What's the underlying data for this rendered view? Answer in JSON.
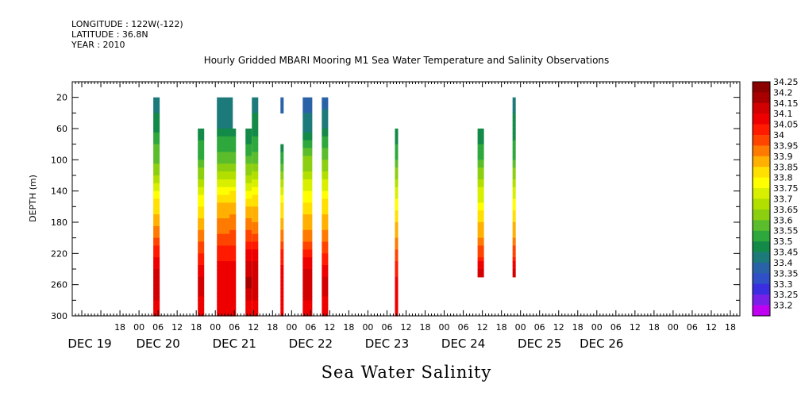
{
  "meta": {
    "longitude": "LONGITUDE : 122W(-122)",
    "latitude": "LATITUDE : 36.8N",
    "year": "YEAR : 2010"
  },
  "chart_data": {
    "type": "heatmap",
    "title": "Hourly Gridded MBARI Mooring M1 Sea Water Temperature and Salinity Observations",
    "xlabel": "Sea Water Salinity",
    "ylabel": "DEPTH (m)",
    "x_axis": {
      "unit": "hours since DEC 19 00:00",
      "range": [
        -21,
        189
      ],
      "hour_ticks": [
        {
          "x": -6,
          "label": "18"
        },
        {
          "x": 0,
          "label": "00"
        },
        {
          "x": 6,
          "label": "06"
        },
        {
          "x": 12,
          "label": "12"
        },
        {
          "x": 18,
          "label": "18"
        },
        {
          "x": 24,
          "label": "00"
        },
        {
          "x": 30,
          "label": "06"
        },
        {
          "x": 36,
          "label": "12"
        },
        {
          "x": 42,
          "label": "18"
        },
        {
          "x": 48,
          "label": "00"
        },
        {
          "x": 54,
          "label": "06"
        },
        {
          "x": 60,
          "label": "12"
        },
        {
          "x": 66,
          "label": "18"
        },
        {
          "x": 72,
          "label": "00"
        },
        {
          "x": 78,
          "label": "06"
        },
        {
          "x": 84,
          "label": "12"
        },
        {
          "x": 90,
          "label": "18"
        },
        {
          "x": 96,
          "label": "00"
        },
        {
          "x": 102,
          "label": "06"
        },
        {
          "x": 108,
          "label": "12"
        },
        {
          "x": 114,
          "label": "18"
        },
        {
          "x": 120,
          "label": "00"
        },
        {
          "x": 126,
          "label": "06"
        },
        {
          "x": 132,
          "label": "12"
        },
        {
          "x": 138,
          "label": "18"
        },
        {
          "x": 144,
          "label": "00"
        },
        {
          "x": 150,
          "label": "06"
        },
        {
          "x": 156,
          "label": "12"
        },
        {
          "x": 162,
          "label": "18"
        },
        {
          "x": 168,
          "label": "00"
        },
        {
          "x": 174,
          "label": "06"
        },
        {
          "x": 180,
          "label": "12"
        },
        {
          "x": 186,
          "label": "18"
        }
      ],
      "day_labels": [
        {
          "x": -15.5,
          "label": "DEC 19"
        },
        {
          "x": 6,
          "label": "DEC 20"
        },
        {
          "x": 30,
          "label": "DEC 21"
        },
        {
          "x": 54,
          "label": "DEC 22"
        },
        {
          "x": 78,
          "label": "DEC 23"
        },
        {
          "x": 102,
          "label": "DEC 24"
        },
        {
          "x": 126,
          "label": "DEC 25"
        },
        {
          "x": 145.5,
          "label": "DEC 26"
        }
      ]
    },
    "y_axis": {
      "range": [
        300,
        0
      ],
      "reversed": true,
      "ticks": [
        20,
        60,
        100,
        140,
        180,
        220,
        260,
        300
      ]
    },
    "colorbar": {
      "levels": [
        "34.25",
        "34.2",
        "34.15",
        "34.1",
        "34.05",
        "34",
        "33.95",
        "33.9",
        "33.85",
        "33.8",
        "33.75",
        "33.7",
        "33.65",
        "33.6",
        "33.55",
        "33.5",
        "33.45",
        "33.4",
        "33.35",
        "33.3",
        "33.25",
        "33.2"
      ],
      "colors": [
        "#8b0000",
        "#a80000",
        "#d20000",
        "#ee0000",
        "#ff1a00",
        "#ff4400",
        "#ff7a00",
        "#ffb000",
        "#ffe000",
        "#ffff00",
        "#d8ef00",
        "#b2df00",
        "#8ccf10",
        "#5cbd2c",
        "#2ea83c",
        "#138a48",
        "#1c7a7a",
        "#2a62a8",
        "#3050c8",
        "#3a2ee0",
        "#7820e8",
        "#c000f0"
      ]
    },
    "columns": [
      {
        "x0": 4.5,
        "x1": 6.5,
        "top": 20,
        "bottom": 300,
        "profile": [
          [
            20,
            33.45
          ],
          [
            40,
            33.5
          ],
          [
            60,
            33.52
          ],
          [
            80,
            33.6
          ],
          [
            100,
            33.62
          ],
          [
            120,
            33.7
          ],
          [
            140,
            33.8
          ],
          [
            160,
            33.88
          ],
          [
            180,
            33.93
          ],
          [
            200,
            34.0
          ],
          [
            220,
            34.08
          ],
          [
            240,
            34.15
          ],
          [
            260,
            34.2
          ],
          [
            280,
            34.15
          ],
          [
            300,
            34.12
          ]
        ]
      },
      {
        "x0": 18.5,
        "x1": 20.5,
        "top": 60,
        "bottom": 300,
        "profile": [
          [
            60,
            33.5
          ],
          [
            80,
            33.56
          ],
          [
            100,
            33.6
          ],
          [
            120,
            33.68
          ],
          [
            140,
            33.78
          ],
          [
            160,
            33.85
          ],
          [
            180,
            33.92
          ],
          [
            200,
            33.98
          ],
          [
            220,
            34.05
          ],
          [
            240,
            34.12
          ],
          [
            260,
            34.18
          ],
          [
            280,
            34.14
          ],
          [
            300,
            34.12
          ]
        ]
      },
      {
        "x0": 24.5,
        "x1": 29.5,
        "top": 20,
        "bottom": 300,
        "profile": [
          [
            20,
            33.48
          ],
          [
            40,
            33.48
          ],
          [
            60,
            33.5
          ],
          [
            80,
            33.58
          ],
          [
            100,
            33.63
          ],
          [
            120,
            33.72
          ],
          [
            140,
            33.82
          ],
          [
            160,
            33.92
          ],
          [
            180,
            33.96
          ],
          [
            200,
            34.02
          ],
          [
            220,
            34.08
          ],
          [
            240,
            34.12
          ],
          [
            260,
            34.15
          ],
          [
            280,
            34.12
          ],
          [
            300,
            34.1
          ]
        ]
      },
      {
        "x0": 28.5,
        "x1": 30.5,
        "top": 60,
        "bottom": 300,
        "profile": [
          [
            60,
            33.5
          ],
          [
            80,
            33.58
          ],
          [
            100,
            33.62
          ],
          [
            120,
            33.72
          ],
          [
            140,
            33.84
          ],
          [
            160,
            33.93
          ],
          [
            180,
            33.97
          ],
          [
            200,
            34.03
          ],
          [
            220,
            34.08
          ],
          [
            240,
            34.12
          ],
          [
            260,
            34.14
          ],
          [
            280,
            34.12
          ],
          [
            300,
            34.1
          ]
        ]
      },
      {
        "x0": 33.5,
        "x1": 35.5,
        "top": 60,
        "bottom": 300,
        "profile": [
          [
            60,
            33.5
          ],
          [
            80,
            33.55
          ],
          [
            100,
            33.62
          ],
          [
            120,
            33.7
          ],
          [
            140,
            33.8
          ],
          [
            160,
            33.9
          ],
          [
            180,
            33.96
          ],
          [
            200,
            34.03
          ],
          [
            220,
            34.12
          ],
          [
            240,
            34.18
          ],
          [
            260,
            34.22
          ],
          [
            280,
            34.15
          ],
          [
            300,
            34.12
          ]
        ]
      },
      {
        "x0": 35.5,
        "x1": 37.5,
        "top": 20,
        "bottom": 300,
        "profile": [
          [
            20,
            33.48
          ],
          [
            40,
            33.5
          ],
          [
            60,
            33.52
          ],
          [
            80,
            33.58
          ],
          [
            100,
            33.63
          ],
          [
            120,
            33.72
          ],
          [
            140,
            33.82
          ],
          [
            160,
            33.9
          ],
          [
            180,
            33.95
          ],
          [
            200,
            34.02
          ],
          [
            220,
            34.12
          ],
          [
            240,
            34.18
          ],
          [
            260,
            34.2
          ],
          [
            280,
            34.15
          ],
          [
            300,
            34.12
          ]
        ]
      },
      {
        "x0": 44.5,
        "x1": 45.5,
        "top": 20,
        "bottom": 40,
        "profile": [
          [
            20,
            33.42
          ],
          [
            40,
            33.42
          ]
        ]
      },
      {
        "x0": 44.5,
        "x1": 45.5,
        "top": 80,
        "bottom": 300,
        "profile": [
          [
            80,
            33.52
          ],
          [
            100,
            33.58
          ],
          [
            120,
            33.68
          ],
          [
            140,
            33.78
          ],
          [
            160,
            33.86
          ],
          [
            180,
            33.92
          ],
          [
            200,
            33.98
          ],
          [
            220,
            34.06
          ],
          [
            240,
            34.12
          ],
          [
            260,
            34.14
          ],
          [
            280,
            34.12
          ],
          [
            300,
            34.1
          ]
        ]
      },
      {
        "x0": 51.5,
        "x1": 54.5,
        "top": 20,
        "bottom": 300,
        "profile": [
          [
            20,
            33.43
          ],
          [
            40,
            33.45
          ],
          [
            60,
            33.48
          ],
          [
            80,
            33.58
          ],
          [
            100,
            33.66
          ],
          [
            120,
            33.72
          ],
          [
            140,
            33.8
          ],
          [
            160,
            33.87
          ],
          [
            180,
            33.92
          ],
          [
            200,
            33.98
          ],
          [
            220,
            34.08
          ],
          [
            240,
            34.15
          ],
          [
            260,
            34.2
          ],
          [
            280,
            34.15
          ],
          [
            300,
            34.12
          ]
        ]
      },
      {
        "x0": 57.5,
        "x1": 59.5,
        "top": 20,
        "bottom": 300,
        "profile": [
          [
            20,
            33.43
          ],
          [
            40,
            33.46
          ],
          [
            60,
            33.5
          ],
          [
            80,
            33.58
          ],
          [
            100,
            33.64
          ],
          [
            120,
            33.72
          ],
          [
            140,
            33.8
          ],
          [
            160,
            33.88
          ],
          [
            180,
            33.93
          ],
          [
            200,
            33.98
          ],
          [
            220,
            34.05
          ],
          [
            240,
            34.12
          ],
          [
            260,
            34.18
          ],
          [
            280,
            34.14
          ],
          [
            300,
            34.12
          ]
        ]
      },
      {
        "x0": 80.5,
        "x1": 81.5,
        "top": 60,
        "bottom": 300,
        "profile": [
          [
            60,
            33.5
          ],
          [
            80,
            33.55
          ],
          [
            100,
            33.6
          ],
          [
            120,
            33.68
          ],
          [
            140,
            33.76
          ],
          [
            160,
            33.84
          ],
          [
            180,
            33.9
          ],
          [
            200,
            33.95
          ],
          [
            220,
            34.02
          ],
          [
            240,
            34.08
          ],
          [
            260,
            34.12
          ],
          [
            280,
            34.12
          ],
          [
            300,
            34.12
          ]
        ]
      },
      {
        "x0": 106.5,
        "x1": 108.5,
        "top": 60,
        "bottom": 250,
        "profile": [
          [
            60,
            33.5
          ],
          [
            80,
            33.55
          ],
          [
            100,
            33.6
          ],
          [
            120,
            33.68
          ],
          [
            140,
            33.76
          ],
          [
            160,
            33.82
          ],
          [
            180,
            33.9
          ],
          [
            200,
            33.95
          ],
          [
            220,
            34.03
          ],
          [
            240,
            34.15
          ],
          [
            250,
            34.2
          ]
        ]
      },
      {
        "x0": 117.5,
        "x1": 118.5,
        "top": 20,
        "bottom": 250,
        "profile": [
          [
            20,
            33.47
          ],
          [
            40,
            33.5
          ],
          [
            60,
            33.52
          ],
          [
            80,
            33.56
          ],
          [
            100,
            33.6
          ],
          [
            120,
            33.68
          ],
          [
            140,
            33.76
          ],
          [
            160,
            33.84
          ],
          [
            180,
            33.9
          ],
          [
            200,
            33.95
          ],
          [
            220,
            34.03
          ],
          [
            240,
            34.15
          ],
          [
            250,
            34.2
          ]
        ]
      }
    ]
  }
}
